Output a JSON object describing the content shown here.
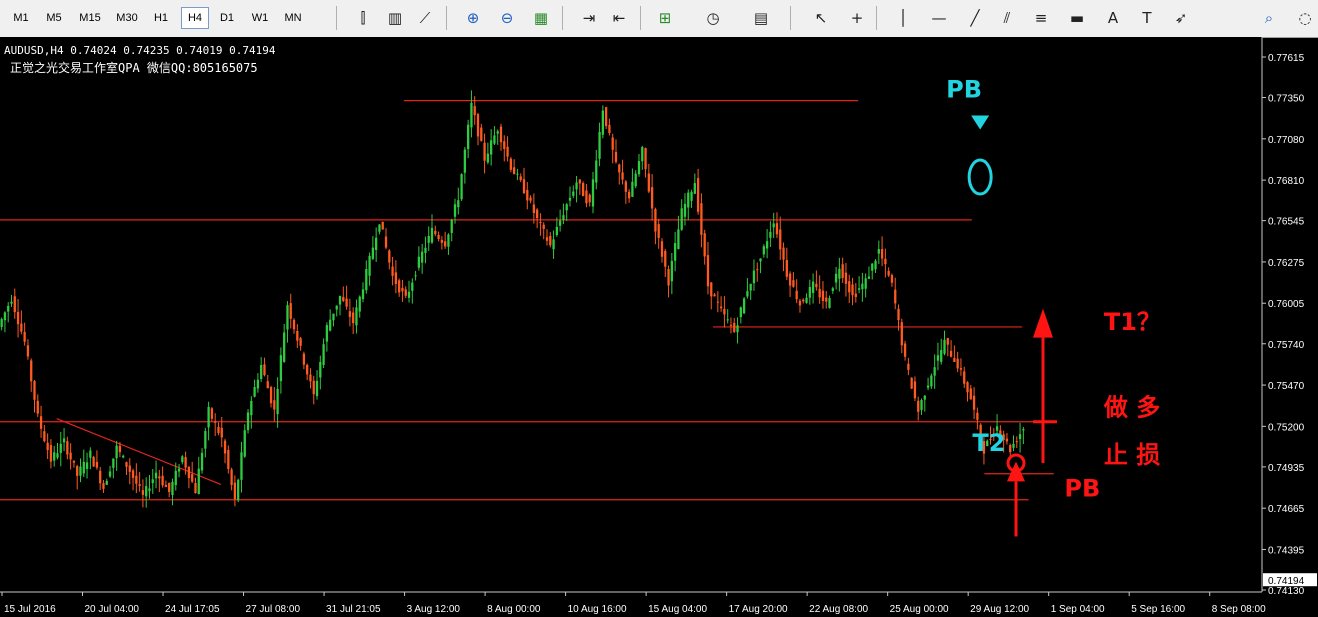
{
  "toolbar": {
    "timeframes": [
      "M1",
      "M5",
      "M15",
      "M30",
      "H1",
      "H4",
      "D1",
      "W1",
      "MN"
    ],
    "active_timeframe": "H4",
    "icons": [
      "bar-chart-icon",
      "candlestick-icon",
      "line-chart-icon",
      "zoom-in-icon",
      "zoom-out-icon",
      "tile-windows-icon",
      "chart-shift-icon",
      "autoscroll-icon",
      "indicators-icon",
      "periods-icon",
      "templates-icon",
      "cursor-icon",
      "crosshair-icon",
      "vertical-line-icon",
      "horizontal-line-icon",
      "trendline-icon",
      "channel-icon",
      "fibonacci-icon",
      "rectangle-icon",
      "text-icon",
      "text-label-icon",
      "arrows-icon",
      "search-icon",
      "chat-icon"
    ]
  },
  "chart_data": {
    "type": "candlestick",
    "symbol_line": "AUDUSD,H4  0.74024 0.74235 0.74019 0.74194",
    "subtitle": "正觉之光交易工作室QPA 微信QQ:805165075",
    "y_ticks": [
      "0.77615",
      "0.77350",
      "0.77080",
      "0.76810",
      "0.76545",
      "0.76275",
      "0.76005",
      "0.75740",
      "0.75470",
      "0.75200",
      "0.74935",
      "0.74665",
      "0.74395",
      "0.74130"
    ],
    "ylim": [
      0.7413,
      0.77615
    ],
    "current_price": "0.74194",
    "x_ticks": [
      "15 Jul 2016",
      "20 Jul 04:00",
      "24 Jul 17:05",
      "27 Jul 08:00",
      "31 Jul 21:05",
      "3 Aug 12:00",
      "8 Aug 00:00",
      "10 Aug 16:00",
      "15 Aug 04:00",
      "17 Aug 20:00",
      "22 Aug 08:00",
      "25 Aug 00:00",
      "29 Aug 12:00",
      "1 Sep 04:00",
      "5 Sep 16:00",
      "8 Sep 08:00"
    ],
    "price_path": [
      [
        0.7585,
        0.7604
      ],
      [
        0.7604,
        0.7575
      ],
      [
        0.7575,
        0.7526
      ],
      [
        0.7526,
        0.7498
      ],
      [
        0.7498,
        0.751
      ],
      [
        0.751,
        0.7488
      ],
      [
        0.7488,
        0.7502
      ],
      [
        0.7502,
        0.748
      ],
      [
        0.748,
        0.7506
      ],
      [
        0.7506,
        0.7491
      ],
      [
        0.7491,
        0.7474
      ],
      [
        0.7474,
        0.749
      ],
      [
        0.749,
        0.7477
      ],
      [
        0.7477,
        0.75
      ],
      [
        0.75,
        0.7478
      ],
      [
        0.7478,
        0.753
      ],
      [
        0.753,
        0.7512
      ],
      [
        0.7512,
        0.7471
      ],
      [
        0.7471,
        0.753
      ],
      [
        0.753,
        0.756
      ],
      [
        0.756,
        0.753
      ],
      [
        0.753,
        0.76
      ],
      [
        0.76,
        0.757
      ],
      [
        0.757,
        0.754
      ],
      [
        0.754,
        0.7585
      ],
      [
        0.7585,
        0.7605
      ],
      [
        0.7605,
        0.7588
      ],
      [
        0.7588,
        0.762
      ],
      [
        0.762,
        0.7655
      ],
      [
        0.7655,
        0.7618
      ],
      [
        0.7618,
        0.7603
      ],
      [
        0.7603,
        0.7628
      ],
      [
        0.7628,
        0.7648
      ],
      [
        0.7648,
        0.764
      ],
      [
        0.764,
        0.767
      ],
      [
        0.767,
        0.773
      ],
      [
        0.773,
        0.7695
      ],
      [
        0.7695,
        0.7715
      ],
      [
        0.7715,
        0.769
      ],
      [
        0.769,
        0.7675
      ],
      [
        0.7675,
        0.7655
      ],
      [
        0.7655,
        0.7638
      ],
      [
        0.7638,
        0.766
      ],
      [
        0.766,
        0.768
      ],
      [
        0.768,
        0.7665
      ],
      [
        0.7665,
        0.7728
      ],
      [
        0.7728,
        0.769
      ],
      [
        0.769,
        0.767
      ],
      [
        0.767,
        0.77
      ],
      [
        0.77,
        0.765
      ],
      [
        0.765,
        0.7615
      ],
      [
        0.7615,
        0.766
      ],
      [
        0.766,
        0.768
      ],
      [
        0.768,
        0.7612
      ],
      [
        0.7612,
        0.7595
      ],
      [
        0.7595,
        0.7582
      ],
      [
        0.7582,
        0.761
      ],
      [
        0.761,
        0.763
      ],
      [
        0.763,
        0.7655
      ],
      [
        0.7655,
        0.762
      ],
      [
        0.762,
        0.76
      ],
      [
        0.76,
        0.7612
      ],
      [
        0.7612,
        0.76
      ],
      [
        0.76,
        0.7625
      ],
      [
        0.7625,
        0.7605
      ],
      [
        0.7605,
        0.7615
      ],
      [
        0.7615,
        0.7635
      ],
      [
        0.7635,
        0.7612
      ],
      [
        0.7612,
        0.7563
      ],
      [
        0.7563,
        0.753
      ],
      [
        0.753,
        0.7555
      ],
      [
        0.7555,
        0.7575
      ],
      [
        0.7575,
        0.756
      ],
      [
        0.756,
        0.7538
      ],
      [
        0.7538,
        0.7505
      ],
      [
        0.7505,
        0.752
      ],
      [
        0.752,
        0.7505
      ],
      [
        0.7505,
        0.7519
      ]
    ],
    "horizontal_lines": [
      {
        "price": 0.7733,
        "from": 0.32,
        "to": 0.68
      },
      {
        "price": 0.7655,
        "from": 0.0,
        "to": 0.77
      },
      {
        "price": 0.7585,
        "from": 0.565,
        "to": 0.81
      },
      {
        "price": 0.7523,
        "from": 0.0,
        "to": 0.835
      },
      {
        "price": 0.7472,
        "from": 0.0,
        "to": 0.815
      },
      {
        "price": 0.7489,
        "from": 0.78,
        "to": 0.835
      }
    ],
    "trendline": {
      "from": [
        0.045,
        0.7525
      ],
      "to": [
        0.175,
        0.7482
      ]
    },
    "annotations": [
      {
        "text": "PB",
        "color": "#22d3e0",
        "index": 72,
        "price": 0.7735
      },
      {
        "text": "T2",
        "color": "#22d3e0",
        "index": 74,
        "price": 0.7504
      },
      {
        "text": "T1？",
        "color": "#ff1414",
        "index": 84,
        "price": 0.7583
      },
      {
        "text": "做 多",
        "color": "#ff1414",
        "index": 84,
        "price": 0.7527
      },
      {
        "text": "止 损",
        "color": "#ff1414",
        "index": 84,
        "price": 0.7496
      },
      {
        "text": "PB",
        "color": "#ff1414",
        "index": 81,
        "price": 0.7474
      }
    ]
  }
}
